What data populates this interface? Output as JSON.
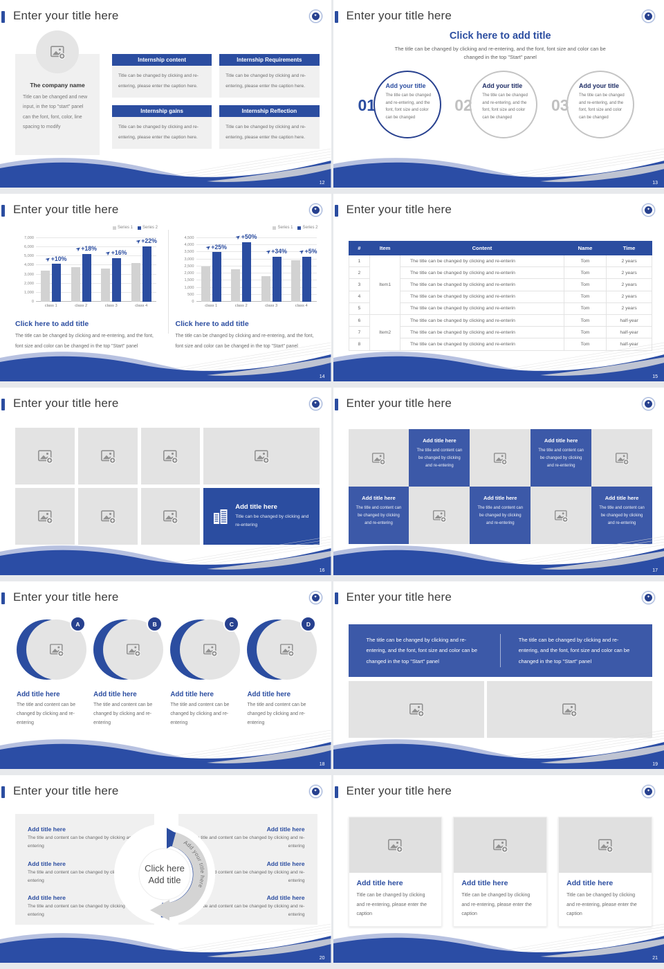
{
  "colors": {
    "accent": "#2b4da0",
    "accent_light": "#3c59a8",
    "wave_blue": "#2b4da5",
    "periwinkle": "#b7c1e0",
    "placeholder_gray": "#e3e3e3",
    "page_background": "#e7e9ec",
    "bar_gray": "#d2d2d2"
  },
  "common": {
    "slide_title": "Enter your title here",
    "logo_glyph": "✦",
    "arrow_glyph": "➤"
  },
  "chart_data": [
    {
      "type": "bar",
      "title": "",
      "xlabel": "",
      "ylabel": "",
      "categories": [
        "class 1",
        "class 2",
        "class 3",
        "class 4"
      ],
      "series": [
        {
          "name": "Series 1",
          "color": "#d2d2d2",
          "values": [
            3400,
            3800,
            3650,
            4300
          ]
        },
        {
          "name": "Series 2",
          "color": "#2b4da0",
          "values": [
            4150,
            5250,
            4800,
            6100
          ]
        }
      ],
      "annotations": [
        "+10%",
        "+18%",
        "+16%",
        "+22%"
      ],
      "ylim": [
        0,
        7000
      ],
      "ytick": 1000,
      "grid": true,
      "legend_position": "top-right"
    },
    {
      "type": "bar",
      "title": "",
      "xlabel": "",
      "ylabel": "",
      "categories": [
        "class 1",
        "class 2",
        "class 3",
        "class 4"
      ],
      "series": [
        {
          "name": "Series 1",
          "color": "#d2d2d2",
          "values": [
            2500,
            2300,
            1800,
            2950
          ]
        },
        {
          "name": "Series 2",
          "color": "#2b4da0",
          "values": [
            3500,
            4200,
            3200,
            3200
          ]
        }
      ],
      "annotations": [
        "+25%",
        "+50%",
        "+34%",
        "+5%"
      ],
      "ylim": [
        0,
        4500
      ],
      "ytick": 500,
      "grid": true,
      "legend_position": "top-right"
    }
  ],
  "slides": {
    "s12": {
      "page": "12",
      "company_title": "The company name",
      "company_body": "Title can be changed and new input, in the top \"start\" panel can the font, font, color, line spacing to modify",
      "boxes": [
        {
          "title": "Internship content",
          "body": "Title can be changed by clicking and re-entering, please enter the caption here."
        },
        {
          "title": "Internship Requirements",
          "body": "Title can be changed by clicking and re-entering, please enter the caption here."
        },
        {
          "title": "Internship gains",
          "body": "Title can be changed by clicking and re-entering, please enter the caption here."
        },
        {
          "title": "Internship Reflection",
          "body": "Title can be changed by clicking and re-entering, please enter the caption here."
        }
      ]
    },
    "s13": {
      "page": "13",
      "heading": "Click here to add title",
      "subheading": "The title can be changed by clicking and re-entering, and the font, font size and color can be changed in the top \"Start\" panel",
      "items": [
        {
          "num": "01",
          "title": "Add your title",
          "body": "The title can be changed and re-entering, and the font, font size and color can be changed"
        },
        {
          "num": "02",
          "title": "Add your title",
          "body": "The title can be changed and re-entering, and the font, font size and color can be changed"
        },
        {
          "num": "03",
          "title": "Add your title",
          "body": "The title can be changed and re-entering, and the font, font size and color can be changed"
        }
      ]
    },
    "s14": {
      "page": "14",
      "panels": [
        {
          "caption_title": "Click here to add title",
          "caption_body": "The title can be changed by clicking and re-entering, and the font, font size and color can be changed in the top \"Start\" panel"
        },
        {
          "caption_title": "Click here to add title",
          "caption_body": "The title can be changed by clicking and re-entering, and the font, font size and color can be changed in the top \"Start\" panel"
        }
      ]
    },
    "s15": {
      "page": "15",
      "headers": [
        "#",
        "Item",
        "Content",
        "Name",
        "Time"
      ],
      "content": "The title can be changed by clicking and re-enterin",
      "name": "Tom",
      "rows": [
        {
          "num": "1",
          "time": "2 years"
        },
        {
          "num": "2",
          "time": "2 years"
        },
        {
          "num": "3",
          "time": "2 years"
        },
        {
          "num": "4",
          "time": "2 years"
        },
        {
          "num": "5",
          "time": "2 years"
        },
        {
          "num": "6",
          "time": "half-year"
        },
        {
          "num": "7",
          "time": "half-year"
        },
        {
          "num": "8",
          "time": "half-year"
        }
      ],
      "item_groups": [
        {
          "label": "Item1",
          "start": 0,
          "span": 5
        },
        {
          "label": "Item2",
          "start": 5,
          "span": 3
        }
      ]
    },
    "s16": {
      "page": "16",
      "card_title": "Add title here",
      "card_body": "Title can be changed by clicking and re-entering"
    },
    "s17": {
      "page": "17",
      "card_title": "Add title here",
      "card_body": "The title and content can be changed by clicking and re-entering"
    },
    "s18": {
      "page": "18",
      "letters": [
        "A",
        "B",
        "C",
        "D"
      ],
      "item_title": "Add title here",
      "item_body": "The title and content can be changed by clicking and re-entering"
    },
    "s19": {
      "page": "19",
      "banner_text": "The title can be changed by clicking and re-entering, and the font, font size and color can be changed in the top \"Start\" panel"
    },
    "s20": {
      "page": "20",
      "center_line1": "Click here",
      "center_line2": "Add title",
      "arc_label": "Add your title here",
      "item_title": "Add title here",
      "item_body": "The title and content can be changed by clicking and re-entering"
    },
    "s21": {
      "page": "21",
      "card_title": "Add title here",
      "card_body": "Title can be changed by clicking and re-entering, please enter the caption"
    }
  }
}
